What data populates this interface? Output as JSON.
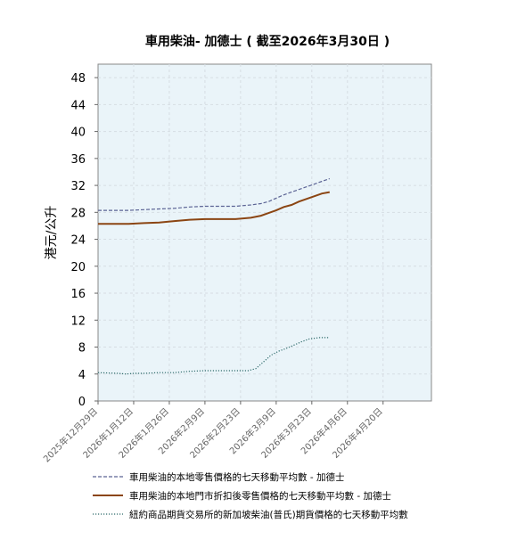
{
  "chart_data": {
    "type": "line",
    "title": "車用柴油- 加德士 ( 截至2026年3月30日 )",
    "ylabel": "港元/公升",
    "xlabel": "",
    "ylim": [
      0,
      50
    ],
    "yticks": [
      0,
      4,
      8,
      12,
      16,
      20,
      24,
      28,
      32,
      36,
      40,
      44,
      48
    ],
    "xlim": [
      "2025-12-29",
      "2026-05-09"
    ],
    "xticks": [
      "2025年12月29日",
      "2026年1月12日",
      "2026年1月26日",
      "2026年2月9日",
      "2026年2月23日",
      "2026年3月9日",
      "2026年3月23日",
      "2026年4月6日",
      "2026年4月20日"
    ],
    "xtick_dates": [
      "2025-12-29",
      "2026-01-12",
      "2026-01-26",
      "2026-02-09",
      "2026-02-23",
      "2026-03-09",
      "2026-03-23",
      "2026-04-06",
      "2026-04-20"
    ],
    "grid": true,
    "legend_position": "bottom",
    "plot_background": "#eaf4f9",
    "series": [
      {
        "name": "車用柴油的本地零售價格的七天移動平均數 - 加德士",
        "color": "#5b6394",
        "style": "dashed",
        "x": [
          "2025-12-29",
          "2026-01-06",
          "2026-01-10",
          "2026-01-16",
          "2026-01-22",
          "2026-01-28",
          "2026-02-03",
          "2026-02-09",
          "2026-02-15",
          "2026-02-21",
          "2026-02-27",
          "2026-03-03",
          "2026-03-06",
          "2026-03-09",
          "2026-03-12",
          "2026-03-15",
          "2026-03-18",
          "2026-03-21",
          "2026-03-24",
          "2026-03-27",
          "2026-03-30"
        ],
        "y": [
          28.3,
          28.3,
          28.3,
          28.4,
          28.5,
          28.6,
          28.8,
          28.9,
          28.9,
          28.9,
          29.1,
          29.3,
          29.6,
          30.1,
          30.6,
          31.0,
          31.4,
          31.8,
          32.2,
          32.6,
          33.0
        ]
      },
      {
        "name": "車用柴油的本地門市折扣後零售價格的七天移動平均數 - 加德士",
        "color": "#8b4513",
        "style": "solid",
        "x": [
          "2025-12-29",
          "2026-01-06",
          "2026-01-10",
          "2026-01-16",
          "2026-01-22",
          "2026-01-28",
          "2026-02-03",
          "2026-02-09",
          "2026-02-15",
          "2026-02-21",
          "2026-02-27",
          "2026-03-03",
          "2026-03-06",
          "2026-03-09",
          "2026-03-12",
          "2026-03-15",
          "2026-03-18",
          "2026-03-21",
          "2026-03-24",
          "2026-03-27",
          "2026-03-30"
        ],
        "y": [
          26.3,
          26.3,
          26.3,
          26.4,
          26.5,
          26.7,
          26.9,
          27.0,
          27.0,
          27.0,
          27.2,
          27.5,
          27.9,
          28.3,
          28.8,
          29.1,
          29.6,
          30.0,
          30.4,
          30.8,
          31.0
        ]
      },
      {
        "name": "紐約商品期貨交易所的新加坡柴油(普氏)期貨價格的七天移動平均數",
        "color": "#2e6b6b",
        "style": "dotted",
        "x": [
          "2025-12-29",
          "2026-01-06",
          "2026-01-09",
          "2026-01-12",
          "2026-01-16",
          "2026-01-22",
          "2026-01-28",
          "2026-02-03",
          "2026-02-09",
          "2026-02-15",
          "2026-02-21",
          "2026-02-26",
          "2026-03-01",
          "2026-03-04",
          "2026-03-07",
          "2026-03-10",
          "2026-03-13",
          "2026-03-16",
          "2026-03-19",
          "2026-03-22",
          "2026-03-26",
          "2026-03-30"
        ],
        "y": [
          4.2,
          4.1,
          4.0,
          4.1,
          4.1,
          4.2,
          4.2,
          4.4,
          4.5,
          4.5,
          4.5,
          4.5,
          4.8,
          5.8,
          6.8,
          7.4,
          7.8,
          8.3,
          8.8,
          9.2,
          9.4,
          9.4
        ]
      }
    ]
  }
}
